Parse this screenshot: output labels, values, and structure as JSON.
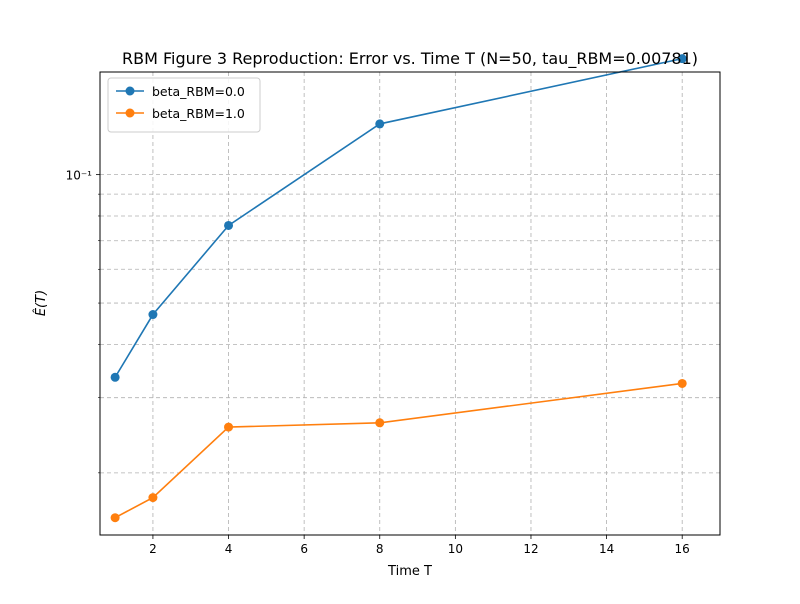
{
  "chart_data": {
    "type": "line",
    "title": "RBM Figure 3 Reproduction: Error vs. Time T (N=50, tau_RBM=0.00781)",
    "xlabel": "Time T",
    "ylabel": "Ê(T)",
    "x_scale": "linear",
    "y_scale": "log",
    "xlim": [
      0.6,
      17.0
    ],
    "ylim": [
      0.0143,
      0.174
    ],
    "x_ticks": [
      2,
      4,
      6,
      8,
      10,
      12,
      14,
      16
    ],
    "x_tick_labels": [
      "2",
      "4",
      "6",
      "8",
      "10",
      "12",
      "14",
      "16"
    ],
    "y_major_ticks": [
      0.1
    ],
    "y_major_labels": [
      "10⁻¹"
    ],
    "y_minor_ticks": [
      0.02,
      0.03,
      0.04,
      0.05,
      0.06,
      0.07,
      0.08,
      0.09
    ],
    "grid": true,
    "grid_style": "dashed",
    "legend_position": "top-left",
    "x": [
      1,
      2,
      4,
      8,
      16
    ],
    "series": [
      {
        "name": "beta_RBM=0.0",
        "color": "#1f77b4",
        "marker": "circle",
        "values": [
          0.0335,
          0.047,
          0.076,
          0.1315,
          0.187
        ]
      },
      {
        "name": "beta_RBM=1.0",
        "color": "#ff7f0e",
        "marker": "circle",
        "values": [
          0.0157,
          0.0175,
          0.0256,
          0.0262,
          0.0324
        ]
      }
    ]
  }
}
